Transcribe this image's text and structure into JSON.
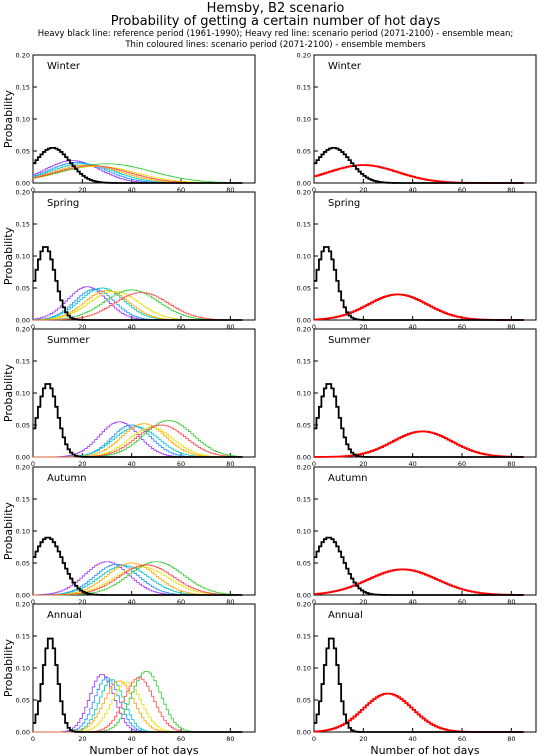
{
  "header": {
    "title": "Hemsby, B2 scenario",
    "subtitle": "Probability of getting a certain number of hot days",
    "note_line1": "Heavy black line: reference period (1961-1990); Heavy red line: scenario period (2071-2100) - ensemble mean;",
    "note_line2": "Thin coloured lines: scenario period (2071-2100) - ensemble members"
  },
  "colors": {
    "reference": "#000000",
    "ensemble_mean": "#ff0000",
    "members": [
      "#9b30ff",
      "#1e90ff",
      "#00c8c8",
      "#ffa500",
      "#e8e000",
      "#33cc33",
      "#ff4444"
    ]
  },
  "chart_data": [
    {
      "type": "line",
      "panel": "left",
      "season": "Winter",
      "ylabel": "Probability",
      "xlabel": "",
      "xlim": [
        0,
        90
      ],
      "ylim": [
        0,
        0.2
      ],
      "xticks": [
        0,
        20,
        40,
        60,
        80
      ],
      "yticks": [
        0.0,
        0.05,
        0.1,
        0.15,
        0.2
      ],
      "reference": {
        "peak": 8,
        "width": 7,
        "height": 0.055
      },
      "members": [
        {
          "peak": 16,
          "width": 11,
          "height": 0.035
        },
        {
          "peak": 18,
          "width": 12,
          "height": 0.032
        },
        {
          "peak": 20,
          "width": 13,
          "height": 0.03
        },
        {
          "peak": 22,
          "width": 14,
          "height": 0.028
        },
        {
          "peak": 26,
          "width": 16,
          "height": 0.026
        },
        {
          "peak": 30,
          "width": 18,
          "height": 0.03
        },
        {
          "peak": 24,
          "width": 15,
          "height": 0.027
        }
      ]
    },
    {
      "type": "line",
      "panel": "right",
      "season": "Winter",
      "ylabel": "",
      "xlabel": "",
      "xlim": [
        0,
        90
      ],
      "ylim": [
        0,
        0.2
      ],
      "xticks": [
        0,
        20,
        40,
        60,
        80
      ],
      "yticks": [
        0.0,
        0.05,
        0.1,
        0.15,
        0.2
      ],
      "reference": {
        "peak": 8,
        "width": 7,
        "height": 0.055
      },
      "mean": {
        "peak": 20,
        "width": 14,
        "height": 0.028
      }
    },
    {
      "type": "line",
      "panel": "left",
      "season": "Spring",
      "ylabel": "Probability",
      "xlabel": "",
      "xlim": [
        0,
        90
      ],
      "ylim": [
        0,
        0.2
      ],
      "xticks": [
        0,
        20,
        40,
        60,
        80
      ],
      "yticks": [
        0.0,
        0.05,
        0.1,
        0.15,
        0.2
      ],
      "reference": {
        "peak": 5,
        "width": 4,
        "height": 0.115
      },
      "members": [
        {
          "peak": 22,
          "width": 8,
          "height": 0.052
        },
        {
          "peak": 25,
          "width": 8,
          "height": 0.048
        },
        {
          "peak": 28,
          "width": 9,
          "height": 0.05
        },
        {
          "peak": 30,
          "width": 9,
          "height": 0.046
        },
        {
          "peak": 33,
          "width": 10,
          "height": 0.045
        },
        {
          "peak": 40,
          "width": 11,
          "height": 0.047
        },
        {
          "peak": 44,
          "width": 11,
          "height": 0.043
        }
      ]
    },
    {
      "type": "line",
      "panel": "right",
      "season": "Spring",
      "ylabel": "",
      "xlabel": "",
      "xlim": [
        0,
        90
      ],
      "ylim": [
        0,
        0.2
      ],
      "xticks": [
        0,
        20,
        40,
        60,
        80
      ],
      "yticks": [
        0.0,
        0.05,
        0.1,
        0.15,
        0.2
      ],
      "reference": {
        "peak": 5,
        "width": 4,
        "height": 0.115
      },
      "mean": {
        "peak": 34,
        "width": 12,
        "height": 0.04
      }
    },
    {
      "type": "line",
      "panel": "left",
      "season": "Summer",
      "ylabel": "Probability",
      "xlabel": "",
      "xlim": [
        0,
        90
      ],
      "ylim": [
        0,
        0.2
      ],
      "xticks": [
        0,
        20,
        40,
        60,
        80
      ],
      "yticks": [
        0.0,
        0.05,
        0.1,
        0.15,
        0.2
      ],
      "reference": {
        "peak": 6,
        "width": 4,
        "height": 0.115
      },
      "members": [
        {
          "peak": 35,
          "width": 8,
          "height": 0.055
        },
        {
          "peak": 40,
          "width": 8,
          "height": 0.05
        },
        {
          "peak": 42,
          "width": 9,
          "height": 0.047
        },
        {
          "peak": 45,
          "width": 9,
          "height": 0.052
        },
        {
          "peak": 48,
          "width": 9,
          "height": 0.046
        },
        {
          "peak": 55,
          "width": 10,
          "height": 0.057
        },
        {
          "peak": 52,
          "width": 10,
          "height": 0.05
        }
      ]
    },
    {
      "type": "line",
      "panel": "right",
      "season": "Summer",
      "ylabel": "",
      "xlabel": "",
      "xlim": [
        0,
        90
      ],
      "ylim": [
        0,
        0.2
      ],
      "xticks": [
        0,
        20,
        40,
        60,
        80
      ],
      "yticks": [
        0.0,
        0.05,
        0.1,
        0.15,
        0.2
      ],
      "reference": {
        "peak": 6,
        "width": 4,
        "height": 0.115
      },
      "mean": {
        "peak": 44,
        "width": 12,
        "height": 0.04
      }
    },
    {
      "type": "line",
      "panel": "left",
      "season": "Autumn",
      "ylabel": "Probability",
      "xlabel": "",
      "xlim": [
        0,
        90
      ],
      "ylim": [
        0,
        0.2
      ],
      "xticks": [
        0,
        20,
        40,
        60,
        80
      ],
      "yticks": [
        0.0,
        0.05,
        0.1,
        0.15,
        0.2
      ],
      "reference": {
        "peak": 6,
        "width": 6,
        "height": 0.09
      },
      "members": [
        {
          "peak": 30,
          "width": 9,
          "height": 0.052
        },
        {
          "peak": 34,
          "width": 9,
          "height": 0.048
        },
        {
          "peak": 37,
          "width": 10,
          "height": 0.046
        },
        {
          "peak": 40,
          "width": 10,
          "height": 0.05
        },
        {
          "peak": 44,
          "width": 11,
          "height": 0.044
        },
        {
          "peak": 50,
          "width": 11,
          "height": 0.052
        },
        {
          "peak": 46,
          "width": 11,
          "height": 0.047
        }
      ]
    },
    {
      "type": "line",
      "panel": "right",
      "season": "Autumn",
      "ylabel": "",
      "xlabel": "",
      "xlim": [
        0,
        90
      ],
      "ylim": [
        0,
        0.2
      ],
      "xticks": [
        0,
        20,
        40,
        60,
        80
      ],
      "yticks": [
        0.0,
        0.05,
        0.1,
        0.15,
        0.2
      ],
      "reference": {
        "peak": 6,
        "width": 6,
        "height": 0.09
      },
      "mean": {
        "peak": 36,
        "width": 14,
        "height": 0.04
      }
    },
    {
      "type": "line",
      "panel": "left",
      "season": "Annual",
      "ylabel": "Probability",
      "xlabel": "Number of hot days",
      "xlim": [
        0,
        90
      ],
      "ylim": [
        0,
        0.2
      ],
      "xticks": [
        0,
        20,
        40,
        60,
        80
      ],
      "yticks": [
        0.0,
        0.05,
        0.1,
        0.15,
        0.2
      ],
      "reference": {
        "peak": 7,
        "width": 3,
        "height": 0.148
      },
      "members": [
        {
          "peak": 28,
          "width": 5,
          "height": 0.09
        },
        {
          "peak": 30,
          "width": 5,
          "height": 0.085
        },
        {
          "peak": 32,
          "width": 5,
          "height": 0.082
        },
        {
          "peak": 35,
          "width": 6,
          "height": 0.08
        },
        {
          "peak": 38,
          "width": 6,
          "height": 0.078
        },
        {
          "peak": 46,
          "width": 6,
          "height": 0.095
        },
        {
          "peak": 43,
          "width": 6,
          "height": 0.085
        }
      ]
    },
    {
      "type": "line",
      "panel": "right",
      "season": "Annual",
      "ylabel": "",
      "xlabel": "Number of hot days",
      "xlim": [
        0,
        90
      ],
      "ylim": [
        0,
        0.2
      ],
      "xticks": [
        0,
        20,
        40,
        60,
        80
      ],
      "yticks": [
        0.0,
        0.05,
        0.1,
        0.15,
        0.2
      ],
      "reference": {
        "peak": 7,
        "width": 3,
        "height": 0.148
      },
      "mean": {
        "peak": 30,
        "width": 10,
        "height": 0.06
      }
    }
  ]
}
